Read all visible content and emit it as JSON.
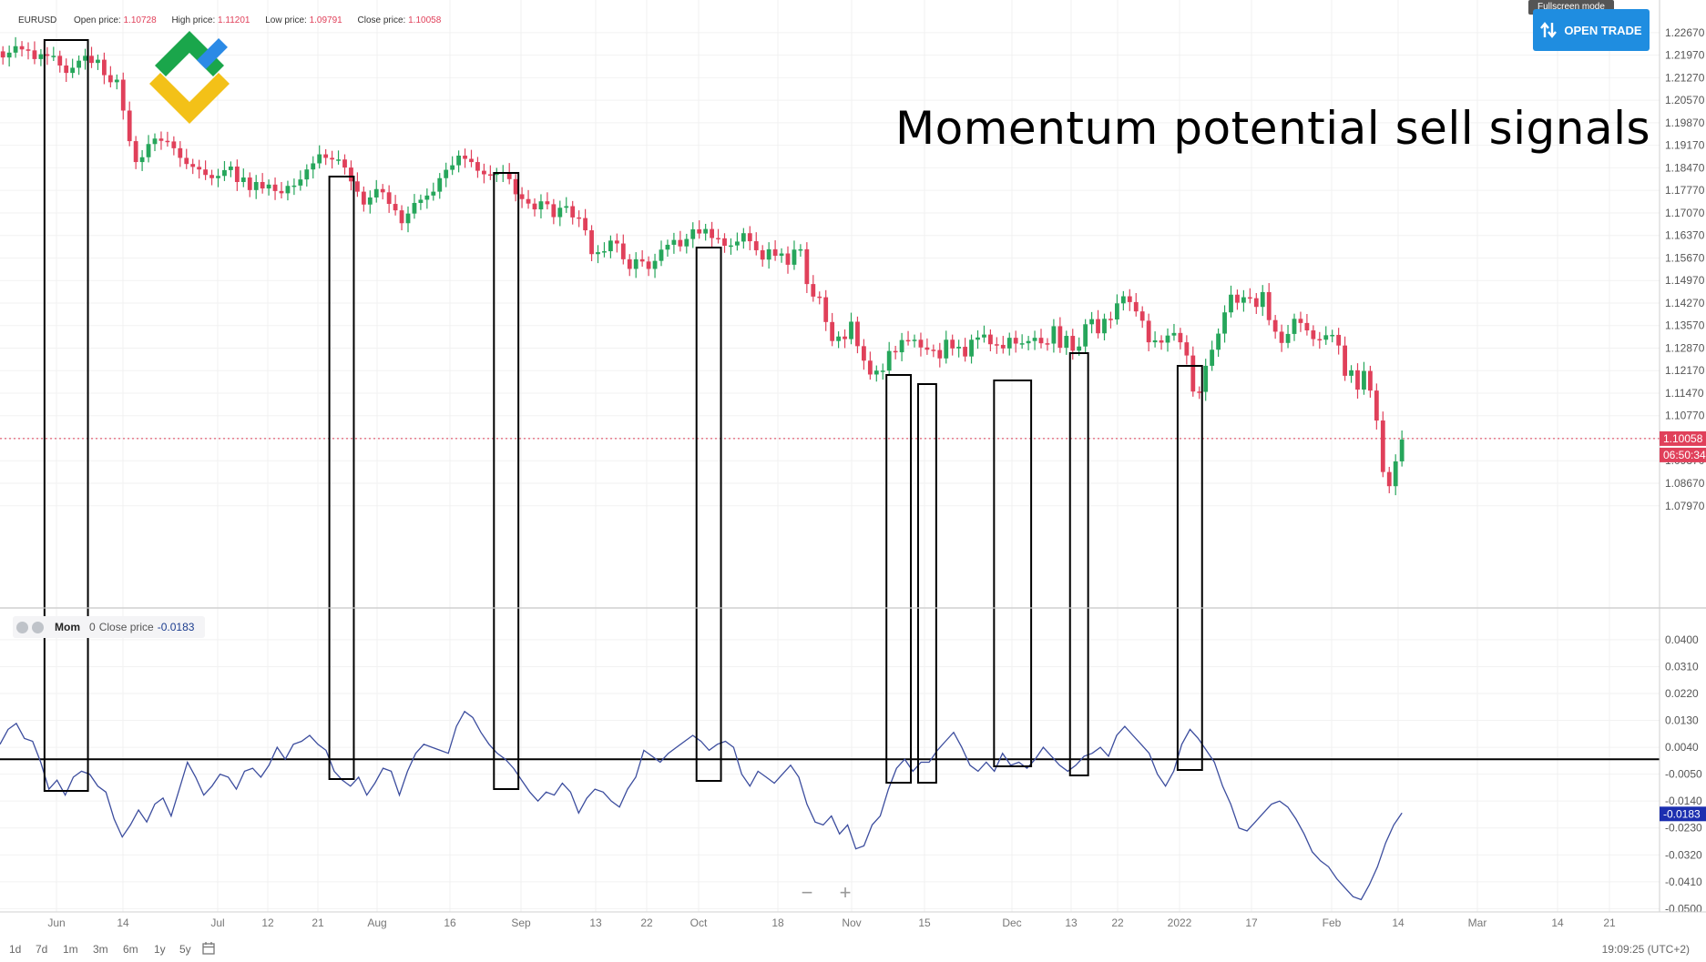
{
  "header": {
    "ticker": "EURUSD",
    "open_label": "Open price:",
    "open_value": "1.10728",
    "high_label": "High price:",
    "high_value": "1.11201",
    "low_label": "Low price:",
    "low_value": "1.09791",
    "close_label": "Close price:",
    "close_value": "1.10058"
  },
  "title": "Momentum potential sell signals",
  "buttons": {
    "fullscreen_tip": "Fullscreen mode",
    "open_trade": "OPEN TRADE",
    "open_trade_icon": "updown-arrows-icon"
  },
  "indicator_legend": {
    "name": "Mom",
    "period": "0",
    "source": "Close price",
    "value": "-0.0183"
  },
  "price_badge": "1.10058",
  "countdown_badge": "06:50:34",
  "mom_badge": "-0.0183",
  "zoom": {
    "minus": "−",
    "plus": "+"
  },
  "ranges": [
    "1d",
    "7d",
    "1m",
    "3m",
    "6m",
    "1y",
    "5y"
  ],
  "clock": "19:09:25 (UTC+2)",
  "colors": {
    "up": "#26a65b",
    "down": "#e0405a",
    "line": "#3c4d9e",
    "brand_green": "#1aa64b",
    "brand_blue": "#2b8ae6",
    "brand_yellow": "#f3c118"
  },
  "chart_data": [
    {
      "type": "candlestick",
      "title": "Momentum potential sell signals",
      "price_ticks": [
        "1.22670",
        "1.21970",
        "1.21270",
        "1.20570",
        "1.19870",
        "1.19170",
        "1.18470",
        "1.17770",
        "1.17070",
        "1.16370",
        "1.15670",
        "1.14970",
        "1.14270",
        "1.13570",
        "1.12870",
        "1.12170",
        "1.11470",
        "1.10770",
        "1.10070",
        "1.09370",
        "1.08670",
        "1.07970"
      ],
      "ylim": [
        1.0785,
        1.2295
      ],
      "x_labels": [
        "Jun",
        "14",
        "Jul",
        "12",
        "21",
        "Aug",
        "16",
        "Sep",
        "13",
        "22",
        "Oct",
        "18",
        "Nov",
        "15",
        "Dec",
        "13",
        "22",
        "2022",
        "17",
        "Feb",
        "14",
        "Mar",
        "14",
        "21"
      ],
      "close": [
        1.219,
        1.2205,
        1.2225,
        1.2215,
        1.2212,
        1.2185,
        1.22,
        1.2195,
        1.2195,
        1.2165,
        1.2142,
        1.2158,
        1.218,
        1.2195,
        1.2173,
        1.2183,
        1.2135,
        1.2113,
        1.2121,
        1.2025,
        1.193,
        1.1865,
        1.188,
        1.1921,
        1.1938,
        1.1931,
        1.1929,
        1.1908,
        1.1878,
        1.1859,
        1.185,
        1.1842,
        1.1825,
        1.1815,
        1.1822,
        1.184,
        1.1851,
        1.1803,
        1.1817,
        1.1778,
        1.1803,
        1.1783,
        1.1795,
        1.1775,
        1.1768,
        1.1791,
        1.1792,
        1.1811,
        1.1842,
        1.1861,
        1.1889,
        1.1878,
        1.1873,
        1.1873,
        1.1848,
        1.1805,
        1.1773,
        1.1733,
        1.1755,
        1.1781,
        1.1771,
        1.1735,
        1.1715,
        1.1675,
        1.1705,
        1.1738,
        1.1748,
        1.1761,
        1.1773,
        1.1815,
        1.1841,
        1.1855,
        1.1885,
        1.1875,
        1.1865,
        1.1838,
        1.1827,
        1.1825,
        1.1831,
        1.1834,
        1.1812,
        1.1765,
        1.175,
        1.1736,
        1.1718,
        1.1743,
        1.1734,
        1.1694,
        1.1723,
        1.1728,
        1.1693,
        1.1691,
        1.1653,
        1.1579,
        1.1585,
        1.1588,
        1.1621,
        1.1612,
        1.1563,
        1.1533,
        1.1563,
        1.1556,
        1.1533,
        1.1558,
        1.1593,
        1.1608,
        1.1623,
        1.1603,
        1.1626,
        1.1656,
        1.1643,
        1.1657,
        1.1629,
        1.1628,
        1.1605,
        1.1606,
        1.1618,
        1.1644,
        1.1619,
        1.1591,
        1.1562,
        1.1594,
        1.1574,
        1.1581,
        1.1546,
        1.1593,
        1.1594,
        1.1486,
        1.1447,
        1.1445,
        1.1368,
        1.1309,
        1.1323,
        1.1315,
        1.1369,
        1.1293,
        1.1248,
        1.1205,
        1.1217,
        1.1217,
        1.1278,
        1.1274,
        1.1312,
        1.1311,
        1.1313,
        1.1289,
        1.1282,
        1.1281,
        1.1255,
        1.1313,
        1.1286,
        1.1291,
        1.1261,
        1.1313,
        1.132,
        1.1329,
        1.1299,
        1.1297,
        1.1286,
        1.1319,
        1.1301,
        1.1302,
        1.1309,
        1.1319,
        1.1302,
        1.1301,
        1.1355,
        1.1288,
        1.1325,
        1.1279,
        1.1292,
        1.1361,
        1.1377,
        1.1333,
        1.1378,
        1.1376,
        1.1426,
        1.1448,
        1.143,
        1.1401,
        1.1372,
        1.1305,
        1.1311,
        1.1304,
        1.1326,
        1.1334,
        1.1305,
        1.1264,
        1.1152,
        1.1151,
        1.1232,
        1.1282,
        1.1332,
        1.1398,
        1.1453,
        1.1428,
        1.1445,
        1.1442,
        1.1415,
        1.1461,
        1.1374,
        1.1338,
        1.1303,
        1.1331,
        1.1378,
        1.1365,
        1.1342,
        1.1315,
        1.1313,
        1.1327,
        1.1328,
        1.1295,
        1.1201,
        1.1218,
        1.1158,
        1.1216,
        1.1155,
        1.1062,
        1.0902,
        1.0858,
        1.0935,
        1.1003
      ],
      "open": [
        1.2209,
        1.219,
        1.2205,
        1.2225,
        1.2215,
        1.2212,
        1.2185,
        1.22,
        1.2195,
        1.2195,
        1.2165,
        1.2142,
        1.2158,
        1.218,
        1.2195,
        1.2173,
        1.2183,
        1.2135,
        1.2113,
        1.2121,
        1.2025,
        1.193,
        1.1865,
        1.188,
        1.1921,
        1.1938,
        1.1931,
        1.1929,
        1.1908,
        1.1878,
        1.1859,
        1.185,
        1.1842,
        1.1825,
        1.1815,
        1.1822,
        1.184,
        1.1851,
        1.1803,
        1.1817,
        1.1778,
        1.1803,
        1.1783,
        1.1795,
        1.1775,
        1.1768,
        1.1791,
        1.1792,
        1.1811,
        1.1842,
        1.1861,
        1.1889,
        1.1878,
        1.1873,
        1.1873,
        1.1848,
        1.1805,
        1.1773,
        1.1733,
        1.1755,
        1.1781,
        1.1771,
        1.1735,
        1.1715,
        1.1675,
        1.1705,
        1.1738,
        1.1748,
        1.1761,
        1.1773,
        1.1815,
        1.1841,
        1.1855,
        1.1885,
        1.1875,
        1.1865,
        1.1838,
        1.1827,
        1.1825,
        1.1831,
        1.1834,
        1.1812,
        1.1765,
        1.175,
        1.1736,
        1.1718,
        1.1743,
        1.1734,
        1.1694,
        1.1723,
        1.1728,
        1.1693,
        1.1691,
        1.1653,
        1.1579,
        1.1585,
        1.1588,
        1.1621,
        1.1612,
        1.1563,
        1.1533,
        1.1563,
        1.1556,
        1.1533,
        1.1558,
        1.1593,
        1.1608,
        1.1623,
        1.1603,
        1.1626,
        1.1656,
        1.1643,
        1.1657,
        1.1629,
        1.1628,
        1.1605,
        1.1606,
        1.1618,
        1.1644,
        1.1619,
        1.1591,
        1.1562,
        1.1594,
        1.1574,
        1.1581,
        1.1546,
        1.1593,
        1.1594,
        1.1486,
        1.1447,
        1.1445,
        1.1368,
        1.1309,
        1.1323,
        1.1315,
        1.1369,
        1.1293,
        1.1248,
        1.1205,
        1.1217,
        1.1217,
        1.1278,
        1.1274,
        1.1312,
        1.1311,
        1.1313,
        1.1289,
        1.1282,
        1.1281,
        1.1255,
        1.1313,
        1.1286,
        1.1291,
        1.1261,
        1.1313,
        1.132,
        1.1329,
        1.1299,
        1.1297,
        1.1286,
        1.1319,
        1.1301,
        1.1302,
        1.1309,
        1.1319,
        1.1302,
        1.1301,
        1.1355,
        1.1288,
        1.1325,
        1.1279,
        1.1292,
        1.1361,
        1.1377,
        1.1333,
        1.1378,
        1.1376,
        1.1426,
        1.1448,
        1.143,
        1.1401,
        1.1372,
        1.1305,
        1.1311,
        1.1304,
        1.1326,
        1.1334,
        1.1305,
        1.1264,
        1.1152,
        1.1151,
        1.1232,
        1.1282,
        1.1332,
        1.1398,
        1.1453,
        1.1428,
        1.1445,
        1.1442,
        1.1415,
        1.1461,
        1.1374,
        1.1338,
        1.1303,
        1.1331,
        1.1378,
        1.1365,
        1.1342,
        1.1315,
        1.1313,
        1.1327,
        1.1328,
        1.1295,
        1.1201,
        1.1218,
        1.1158,
        1.1216,
        1.1155,
        1.1062,
        1.0902,
        1.0858,
        1.0935
      ]
    },
    {
      "type": "line",
      "name": "Mom",
      "zero_line": 0,
      "ylim": [
        -0.0505,
        0.0415
      ],
      "y_ticks": [
        "0.0400",
        "0.0310",
        "0.0220",
        "0.0130",
        "0.0040",
        "-0.0050",
        "-0.0140",
        "-0.0230",
        "-0.0320",
        "-0.0410",
        "-0.0500"
      ],
      "values": [
        0.005,
        0.01,
        0.012,
        0.007,
        0.006,
        -0.001,
        -0.01,
        -0.007,
        -0.012,
        -0.006,
        -0.004,
        -0.005,
        -0.009,
        -0.011,
        -0.02,
        -0.026,
        -0.022,
        -0.017,
        -0.021,
        -0.015,
        -0.013,
        -0.019,
        -0.01,
        -0.001,
        -0.006,
        -0.012,
        -0.009,
        -0.005,
        -0.006,
        -0.01,
        -0.004,
        -0.003,
        -0.006,
        -0.002,
        0.004,
        -0.0,
        0.005,
        0.006,
        0.008,
        0.005,
        0.003,
        -0.004,
        -0.007,
        -0.009,
        -0.006,
        -0.012,
        -0.008,
        -0.003,
        -0.004,
        -0.012,
        -0.004,
        0.002,
        0.005,
        0.004,
        0.003,
        0.002,
        0.011,
        0.016,
        0.014,
        0.009,
        0.005,
        0.002,
        0.0,
        -0.003,
        -0.007,
        -0.011,
        -0.014,
        -0.011,
        -0.012,
        -0.008,
        -0.011,
        -0.018,
        -0.013,
        -0.01,
        -0.011,
        -0.014,
        -0.016,
        -0.01,
        -0.006,
        0.003,
        0.001,
        -0.001,
        0.002,
        0.004,
        0.006,
        0.008,
        0.006,
        0.003,
        0.005,
        0.006,
        0.004,
        -0.005,
        -0.009,
        -0.004,
        -0.006,
        -0.008,
        -0.005,
        -0.002,
        -0.006,
        -0.015,
        -0.021,
        -0.022,
        -0.019,
        -0.025,
        -0.022,
        -0.03,
        -0.029,
        -0.022,
        -0.019,
        -0.01,
        -0.003,
        0.0,
        -0.004,
        -0.001,
        -0.001,
        0.003,
        0.006,
        0.009,
        0.004,
        -0.002,
        -0.004,
        -0.001,
        -0.004,
        0.002,
        -0.002,
        -0.001,
        -0.003,
        0.0,
        0.004,
        0.001,
        -0.002,
        -0.004,
        -0.002,
        0.001,
        0.002,
        0.004,
        0.001,
        0.008,
        0.011,
        0.008,
        0.005,
        0.002,
        -0.005,
        -0.009,
        -0.004,
        0.005,
        0.01,
        0.007,
        0.003,
        -0.001,
        -0.009,
        -0.015,
        -0.023,
        -0.024,
        -0.021,
        -0.018,
        -0.015,
        -0.014,
        -0.016,
        -0.02,
        -0.025,
        -0.031,
        -0.034,
        -0.036,
        -0.04,
        -0.043,
        -0.046,
        -0.047,
        -0.042,
        -0.036,
        -0.028,
        -0.022,
        -0.018
      ]
    }
  ]
}
